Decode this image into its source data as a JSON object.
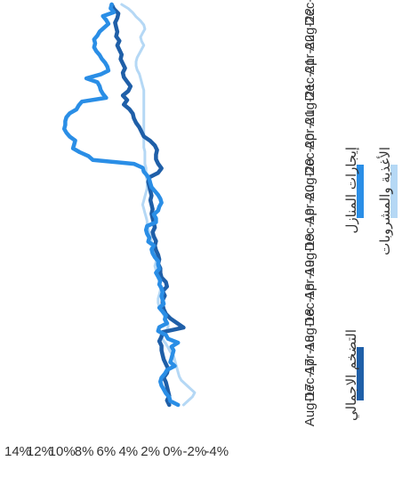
{
  "chart_data": {
    "type": "line",
    "orientation": "rotated-90-clockwise",
    "x_ticks": [
      "Aug-17",
      "Dec-17",
      "Apr-18",
      "Aug-18",
      "Dec-18",
      "Apr-19",
      "Aug-19",
      "Dec-19",
      "Apr-20",
      "Aug-20",
      "Dec-20",
      "Apr-21",
      "Aug-21",
      "Dec-21",
      "Apr-22",
      "Aug-22",
      "Dec-22"
    ],
    "y_ticks": [
      "14%",
      "12%",
      "10%",
      "8%",
      "6%",
      "4%",
      "2%",
      "0%",
      "-2%",
      "-4%"
    ],
    "ylim": [
      -4,
      14
    ],
    "grid": false,
    "legend_position": "right",
    "series": [
      {
        "name": "التضخم الاجمالي",
        "color": "#1f5fa8",
        "values": [
          0.3,
          0.5,
          0.3,
          0.4,
          0.5,
          0.6,
          0.8,
          0.5,
          0.4,
          0.6,
          0.8,
          0.9,
          1.0,
          1.0,
          1.2,
          1.0,
          0.9,
          -1.0,
          -0.4,
          0.2,
          0.6,
          0.8,
          0.9,
          0.9,
          0.7,
          0.9,
          0.5,
          0.6,
          1.0,
          1.1,
          1.1,
          1.3,
          1.2,
          1.3,
          1.5,
          1.6,
          1.5,
          1.7,
          1.8,
          1.6,
          1.7,
          1.8,
          1.9,
          1.8,
          1.9,
          2.0,
          1.9,
          2.0,
          2.1,
          2.2,
          2.1,
          1.3,
          1.0,
          1.3,
          1.5,
          1.5,
          1.4,
          1.6,
          2.0,
          2.6,
          2.8,
          3.0,
          3.3,
          3.5,
          3.6,
          3.9,
          4.4,
          4.1,
          4.5,
          4.0,
          3.8,
          4.1,
          4.4,
          4.5,
          4.3,
          4.5,
          4.7,
          4.6,
          4.8,
          5.0,
          4.8,
          5.1,
          5.0,
          5.1,
          5.2,
          5.0,
          4.9,
          5.3,
          5.5
        ]
      },
      {
        "name": "إيجارات المنازل",
        "color": "#2a8ee6",
        "values": [
          -0.5,
          0.2,
          0.3,
          0.6,
          0.8,
          1.0,
          1.1,
          1.0,
          0.7,
          0.5,
          -0.2,
          0.2,
          0.1,
          0.0,
          -0.1,
          0.1,
          -0.5,
          0.4,
          0.6,
          1.3,
          1.2,
          0.5,
          0.7,
          0.6,
          0.9,
          1.2,
          0.8,
          0.9,
          1.0,
          0.9,
          1.0,
          1.2,
          1.1,
          1.3,
          1.5,
          1.2,
          1.3,
          1.3,
          1.6,
          1.8,
          1.9,
          1.7,
          2.2,
          2.1,
          2.3,
          2.4,
          2.3,
          1.5,
          1.5,
          1.7,
          1.3,
          1.2,
          1.0,
          1.1,
          1.3,
          1.6,
          1.9,
          2.0,
          2.1,
          2.3,
          2.6,
          2.7,
          3.5,
          7.2,
          7.6,
          8.4,
          9.0,
          8.9,
          8.8,
          9.3,
          9.6,
          9.8,
          9.7,
          9.7,
          9.6,
          9.3,
          8.7,
          8.5,
          8.2,
          6.0,
          6.3,
          6.5,
          6.6,
          6.8,
          7.8,
          6.5,
          5.8,
          5.9,
          6.1,
          6.4,
          6.6,
          6.9,
          7.1,
          7.0,
          7.1,
          6.8,
          6.6,
          6.2,
          5.8,
          6.0,
          6.3,
          5.3,
          5.6,
          5.5
        ]
      },
      {
        "name": "الأغذية والمشروبات",
        "color": "#b5d8f5",
        "values": [
          -1.0,
          -1.4,
          -1.8,
          -2.0,
          -1.6,
          -1.2,
          -0.8,
          -0.6,
          -0.5,
          -0.4,
          -0.3,
          -0.2,
          -0.1,
          0.2,
          0.4,
          0.6,
          0.9,
          1.0,
          0.6,
          0.4,
          0.4,
          0.6,
          0.8,
          1.0,
          1.2,
          1.3,
          1.3,
          1.2,
          1.1,
          1.1,
          1.2,
          1.3,
          1.4,
          1.5,
          1.6,
          1.5,
          1.5,
          1.6,
          1.6,
          1.8,
          1.9,
          2.0,
          2.1,
          2.2,
          2.3,
          2.3,
          2.4,
          2.5,
          2.6,
          2.7,
          2.6,
          2.5,
          2.4,
          2.3,
          2.3,
          2.3,
          2.4,
          2.4,
          2.4,
          2.5,
          2.5,
          2.5,
          2.5,
          2.6,
          2.6,
          2.6,
          2.6,
          2.6,
          2.6,
          2.6,
          2.6,
          2.6,
          2.6,
          2.6,
          2.6,
          2.6,
          2.6,
          2.6,
          2.7,
          2.8,
          2.9,
          3.0,
          3.2,
          3.3,
          3.3,
          3.2,
          3.0,
          2.8,
          2.6,
          2.8,
          2.9,
          2.7,
          2.5,
          2.6,
          2.9,
          3.3,
          3.6,
          4.0,
          4.6
        ]
      }
    ]
  }
}
